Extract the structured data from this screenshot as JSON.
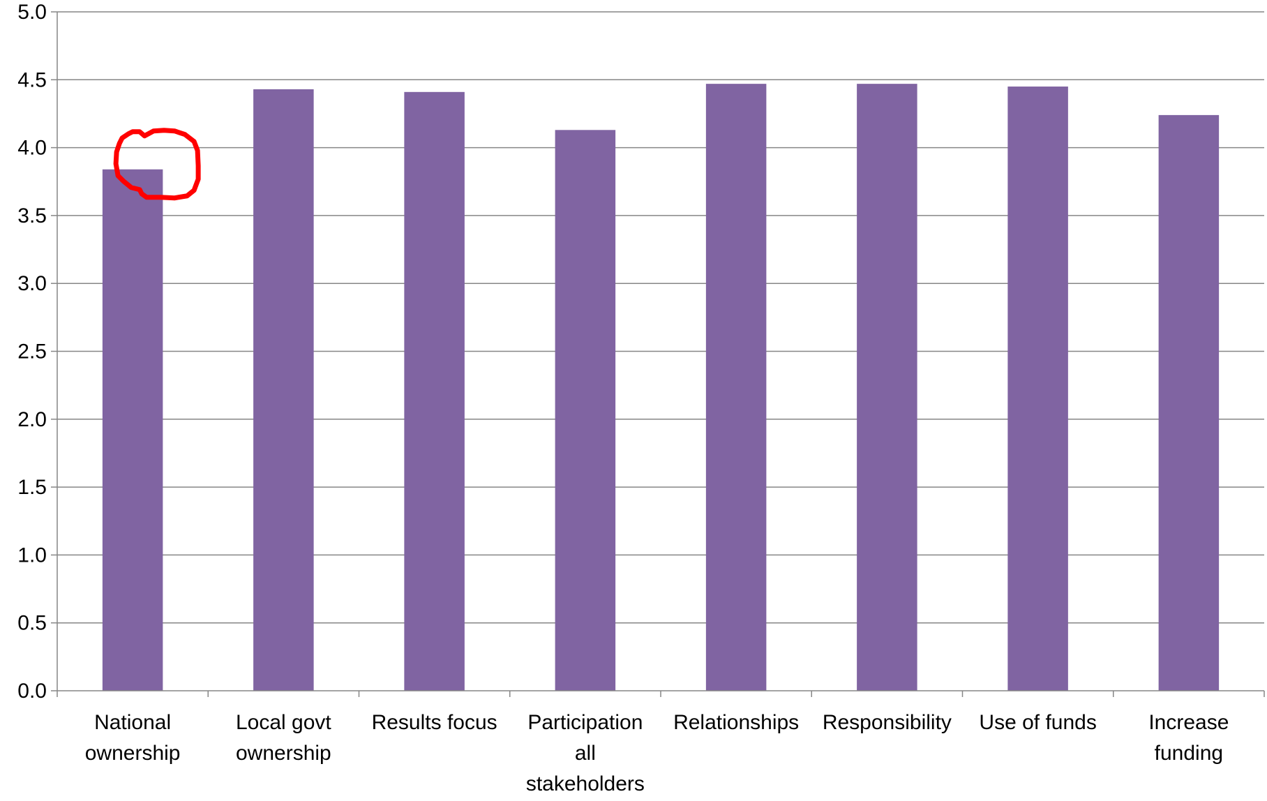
{
  "chart_data": {
    "type": "bar",
    "title": "",
    "xlabel": "",
    "ylabel": "",
    "ylim": [
      0,
      5
    ],
    "y_ticks": [
      "0.0",
      "0.5",
      "1.0",
      "1.5",
      "2.0",
      "2.5",
      "3.0",
      "3.5",
      "4.0",
      "4.5",
      "5.0"
    ],
    "grid": "horizontal",
    "categories": [
      [
        "National",
        "ownership"
      ],
      [
        "Local govt",
        "ownership"
      ],
      [
        "Results focus"
      ],
      [
        "Participation",
        "all",
        "stakeholders"
      ],
      [
        "Relationships"
      ],
      [
        "Responsibility"
      ],
      [
        "Use of funds"
      ],
      [
        "Increase",
        "funding"
      ]
    ],
    "values": [
      3.84,
      4.43,
      4.41,
      4.13,
      4.47,
      4.47,
      4.45,
      4.24
    ],
    "highlighted_category_index": 0
  },
  "colors": {
    "bar": "#8064A2",
    "highlight_circle": "#FF0000",
    "gridline": "#868686"
  }
}
